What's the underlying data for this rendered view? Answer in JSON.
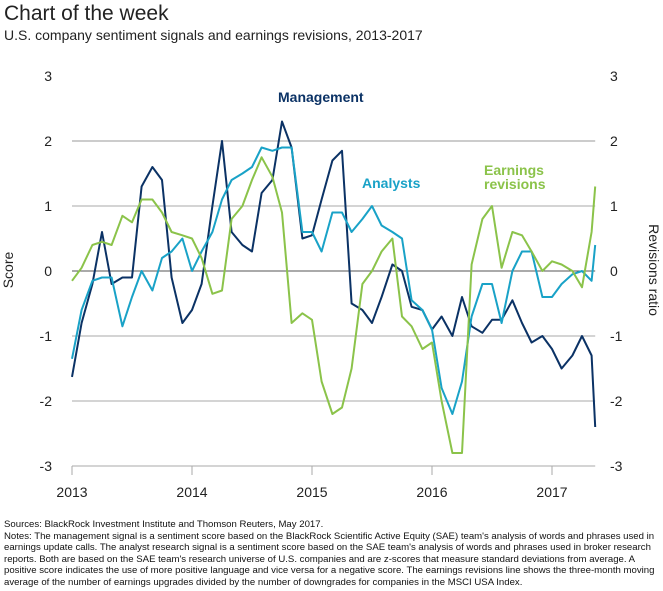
{
  "header": {
    "title": "Chart of the week",
    "subtitle": "U.S. company sentiment signals and earnings revisions, 2013-2017"
  },
  "chart_data": {
    "type": "line",
    "title": "Chart of the week",
    "subtitle": "U.S. company sentiment signals and earnings revisions, 2013-2017",
    "ylabel": "Score",
    "ylabel_right": "Revisions ratio",
    "xlabel": "",
    "ylim": [
      -3,
      3
    ],
    "xlim": [
      2013,
      2017.36
    ],
    "yticks": [
      "3",
      "2",
      "1",
      "0",
      "-1",
      "-2",
      "-3"
    ],
    "yticks_right": [
      "3",
      "2",
      "1",
      "0",
      "-1",
      "-2",
      "-3"
    ],
    "xticks": [
      "2013",
      "2014",
      "2015",
      "2016",
      "2017"
    ],
    "grid": "horizontal",
    "legend": "inline labels",
    "x": [
      2013.0,
      2013.08,
      2013.17,
      2013.25,
      2013.33,
      2013.42,
      2013.5,
      2013.58,
      2013.67,
      2013.75,
      2013.83,
      2013.92,
      2014.0,
      2014.08,
      2014.17,
      2014.25,
      2014.33,
      2014.42,
      2014.5,
      2014.58,
      2014.67,
      2014.75,
      2014.83,
      2014.92,
      2015.0,
      2015.08,
      2015.17,
      2015.25,
      2015.33,
      2015.42,
      2015.5,
      2015.58,
      2015.67,
      2015.75,
      2015.83,
      2015.92,
      2016.0,
      2016.08,
      2016.17,
      2016.25,
      2016.33,
      2016.42,
      2016.5,
      2016.58,
      2016.67,
      2016.75,
      2016.83,
      2016.92,
      2017.0,
      2017.08,
      2017.17,
      2017.25,
      2017.33,
      2017.36
    ],
    "series": [
      {
        "name": "Management",
        "color": "#0b3265",
        "values": [
          -1.63,
          -0.8,
          -0.2,
          0.6,
          -0.2,
          -0.1,
          -0.1,
          1.3,
          1.6,
          1.4,
          -0.1,
          -0.8,
          -0.6,
          -0.2,
          1.0,
          2.0,
          0.6,
          0.4,
          0.3,
          1.2,
          1.4,
          2.3,
          1.9,
          0.5,
          0.55,
          1.1,
          1.7,
          1.85,
          -0.5,
          -0.6,
          -0.8,
          -0.4,
          0.1,
          0.0,
          -0.55,
          -0.6,
          -0.9,
          -0.7,
          -1.0,
          -0.4,
          -0.85,
          -0.95,
          -0.75,
          -0.75,
          -0.45,
          -0.8,
          -1.1,
          -1.0,
          -1.2,
          -1.5,
          -1.3,
          -1.0,
          -1.3,
          -2.4
        ]
      },
      {
        "name": "Analysts",
        "color": "#19a2c7",
        "values": [
          -1.35,
          -0.6,
          -0.15,
          -0.1,
          -0.1,
          -0.85,
          -0.4,
          0.0,
          -0.3,
          0.2,
          0.3,
          0.5,
          0.0,
          0.3,
          0.6,
          1.1,
          1.4,
          1.5,
          1.6,
          1.9,
          1.85,
          1.9,
          1.9,
          0.6,
          0.6,
          0.3,
          0.9,
          0.9,
          0.6,
          0.8,
          1.0,
          0.7,
          0.6,
          0.5,
          -0.45,
          -0.6,
          -0.9,
          -1.8,
          -2.2,
          -1.7,
          -0.7,
          -0.2,
          -0.2,
          -0.8,
          0.0,
          0.3,
          0.3,
          -0.4,
          -0.4,
          -0.2,
          -0.05,
          0.0,
          -0.15,
          0.4
        ]
      },
      {
        "name": "Earnings revisions",
        "color": "#8bc34a",
        "values": [
          -0.15,
          0.05,
          0.4,
          0.45,
          0.4,
          0.85,
          0.75,
          1.1,
          1.1,
          0.9,
          0.6,
          0.55,
          0.5,
          0.2,
          -0.35,
          -0.3,
          0.8,
          1.0,
          1.4,
          1.75,
          1.45,
          0.9,
          -0.8,
          -0.65,
          -0.75,
          -1.7,
          -2.2,
          -2.1,
          -1.5,
          -0.2,
          0.0,
          0.3,
          0.5,
          -0.7,
          -0.85,
          -1.2,
          -1.1,
          -2.0,
          -2.8,
          -2.8,
          0.1,
          0.8,
          1.0,
          0.05,
          0.6,
          0.55,
          0.3,
          0.0,
          0.15,
          0.1,
          0.0,
          -0.25,
          0.6,
          1.3
        ]
      }
    ],
    "annotations": [
      "Management",
      "Analysts",
      "Earnings revisions"
    ]
  },
  "labels": {
    "management": "Management",
    "analysts": "Analysts",
    "earnings_line1": "Earnings",
    "earnings_line2": "revisions"
  },
  "footer": {
    "sources": "Sources: BlackRock Investment Institute and Thomson Reuters, May 2017.",
    "notes": "Notes: The management signal is a sentiment score based on the BlackRock Scientific Active Equity (SAE) team's analysis of words and phrases used in earnings update calls. The analyst research signal is a sentiment score based on the SAE team's analysis of words and phrases used in broker research reports. Both are based on the SAE team's research universe of U.S. companies and are z-scores that measure standard deviations from average. A positive score indicates the use of more positive language and vice versa for a negative score. The earnings revisions line shows the three-month moving average of the number of earnings upgrades divided by the number of downgrades for companies in the MSCI USA Index."
  }
}
